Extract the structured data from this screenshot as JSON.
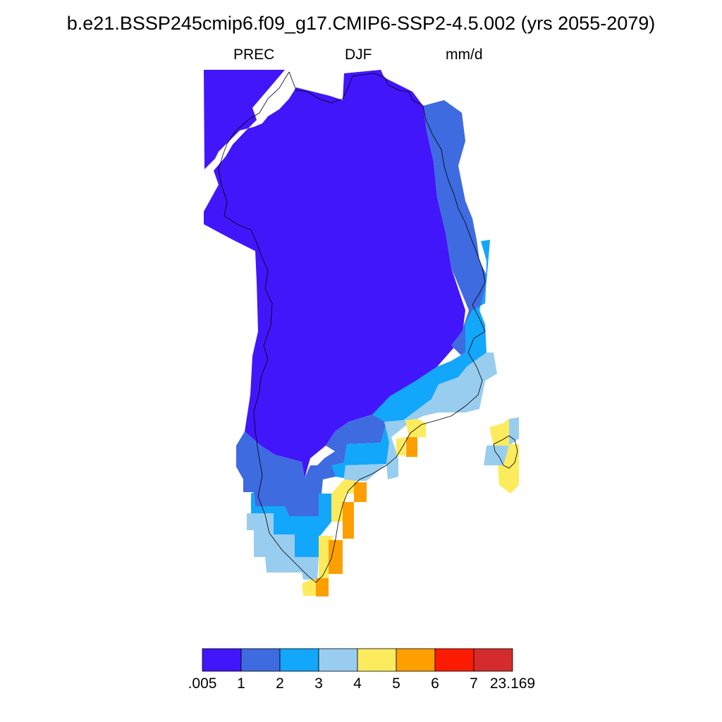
{
  "title": "b.e21.BSSP245cmip6.f09_g17.CMIP6-SSP2-4.5.002 (yrs 2055-2079)",
  "subtitle": {
    "variable": "PREC",
    "season": "DJF",
    "units": "mm/d"
  },
  "colorbar": {
    "bins": [
      {
        "color": "#4216fa"
      },
      {
        "color": "#3f6be1"
      },
      {
        "color": "#12a7fa"
      },
      {
        "color": "#98cdef"
      },
      {
        "color": "#fdeb5e"
      },
      {
        "color": "#fe9f00"
      },
      {
        "color": "#fd1b00"
      },
      {
        "color": "#d42c2d"
      }
    ],
    "labels": [
      ".005",
      "1",
      "2",
      "3",
      "4",
      "5",
      "6",
      "7",
      "23.169"
    ]
  }
}
